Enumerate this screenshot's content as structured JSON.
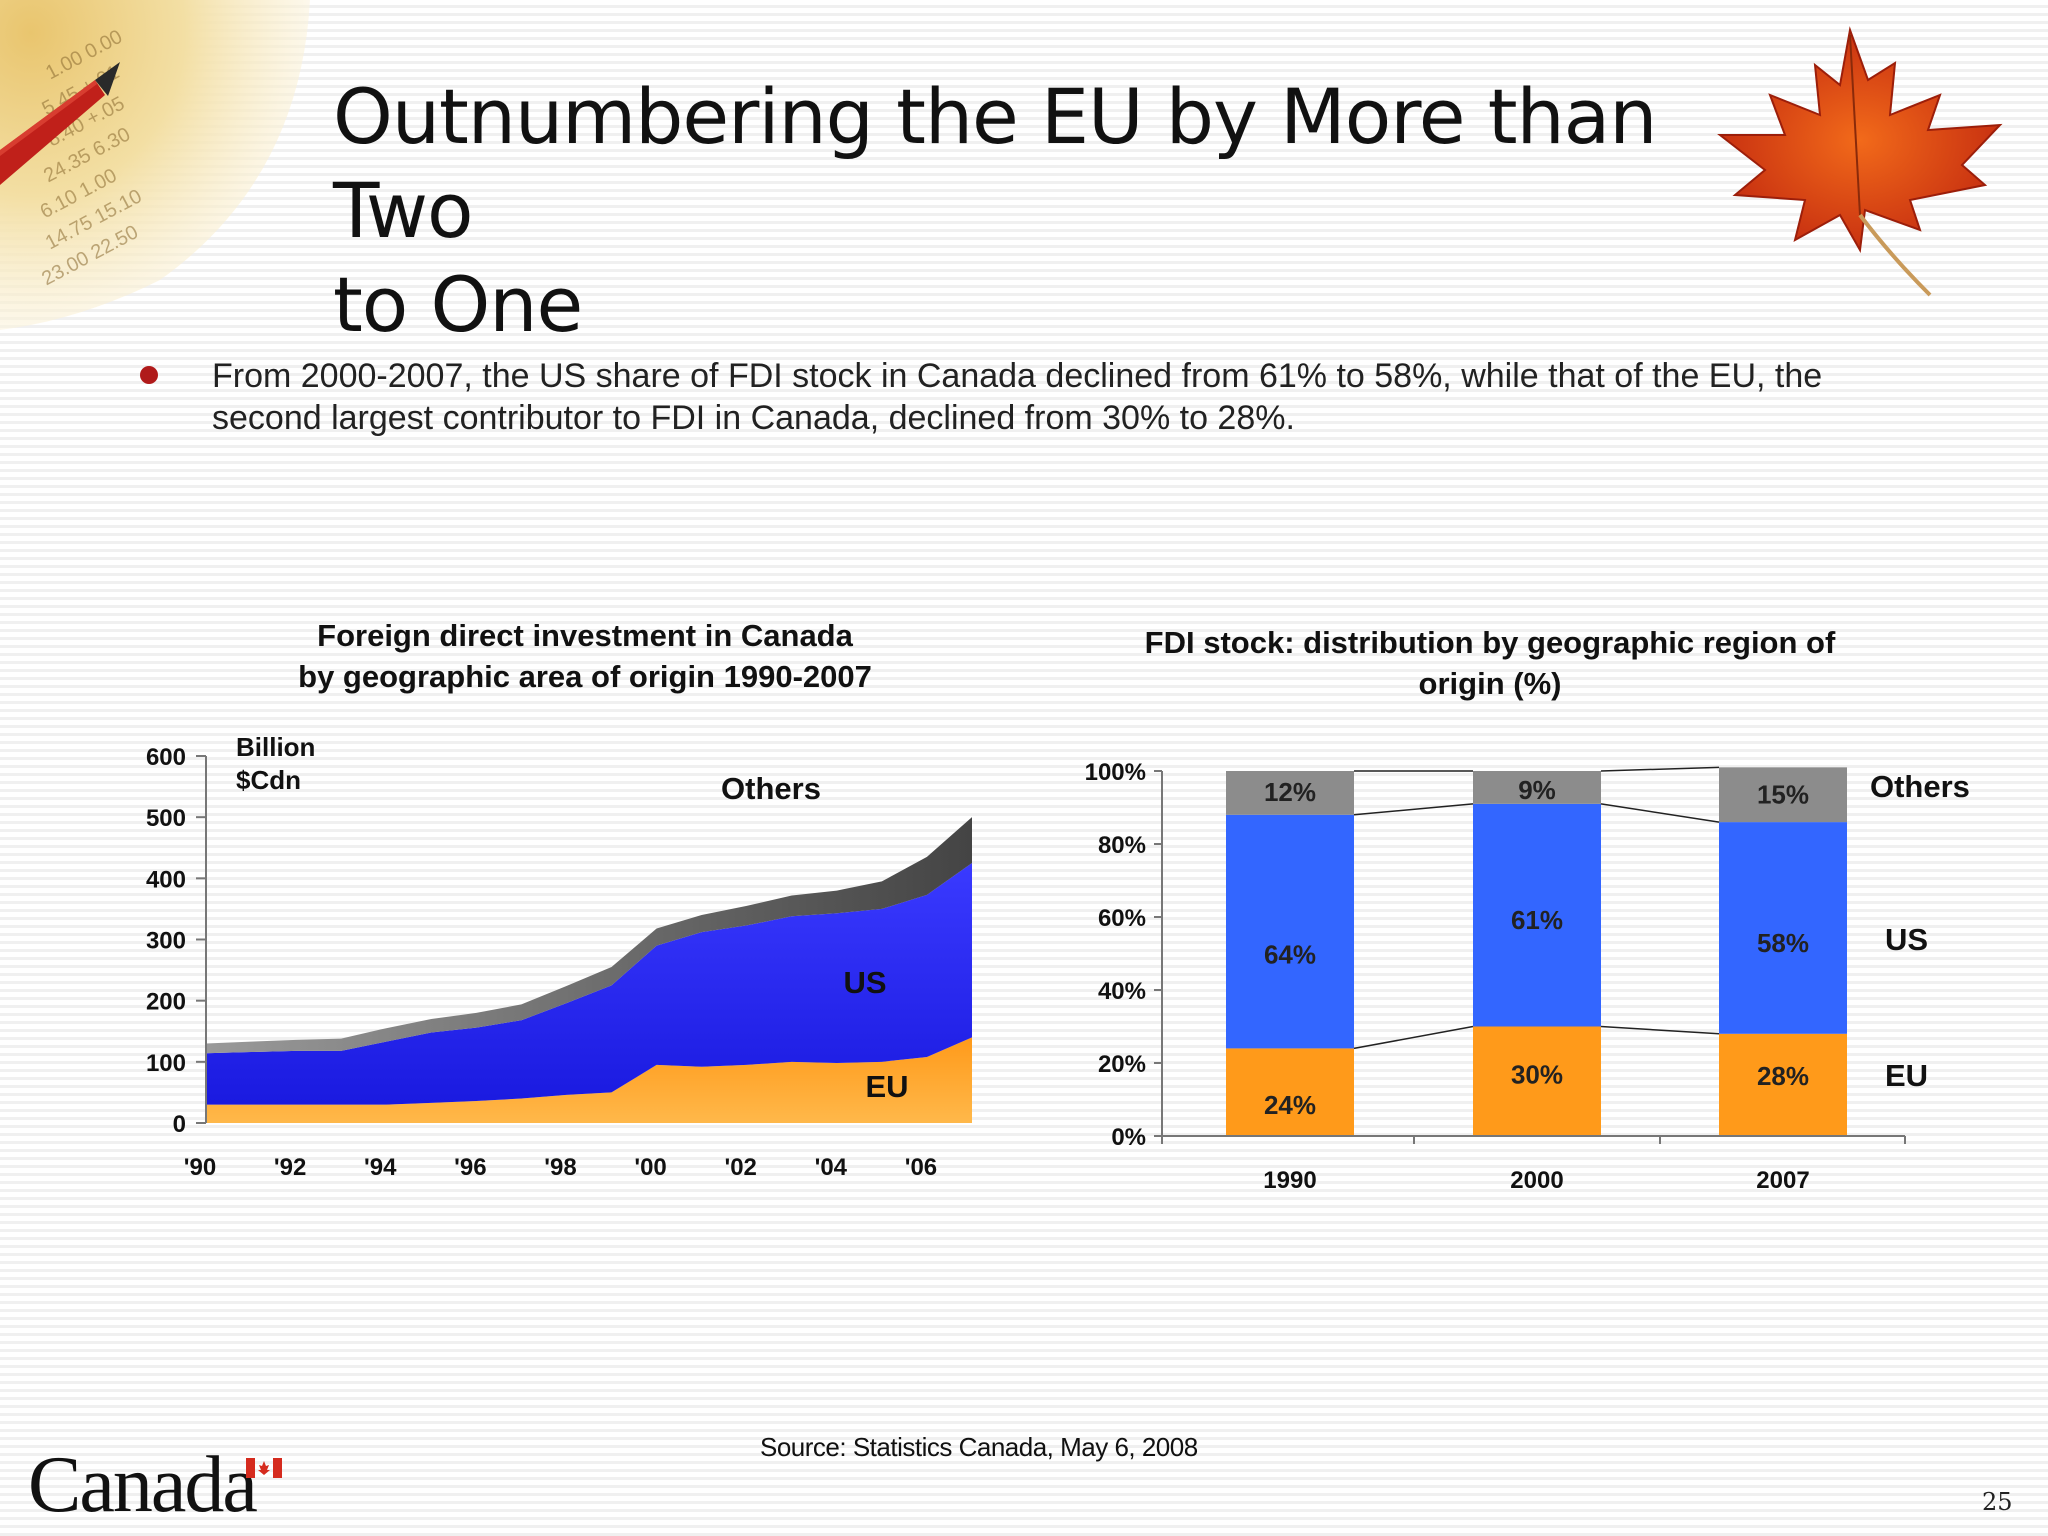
{
  "slide": {
    "title_lines": [
      "Outnumbering the EU by More than Two",
      "to One"
    ],
    "bullet": "From 2000-2007, the US share of FDI stock in Canada declined from 61% to 58%, while that of the EU, the second largest contributor to FDI in Canada, declined from 30% to 28%.",
    "source": "Source: Statistics Canada, May 6, 2008",
    "page_number": "25",
    "wordmark": "Canada",
    "colors": {
      "bullet": "#b01a1a",
      "eu": "#ff9a1a",
      "us": "#2a2aff",
      "others": "#888888",
      "others_dark": "#555555"
    }
  },
  "chart_data": [
    {
      "type": "area",
      "stacked": true,
      "title_lines": [
        "Foreign direct investment in Canada",
        "by geographic area of origin 1990-2007"
      ],
      "unit_label_lines": [
        "Billion",
        "$Cdn"
      ],
      "x": [
        1990,
        1991,
        1992,
        1993,
        1994,
        1995,
        1996,
        1997,
        1998,
        1999,
        2000,
        2001,
        2002,
        2003,
        2004,
        2005,
        2006,
        2007
      ],
      "x_tick_labels": [
        "'90",
        "'92",
        "'94",
        "'96",
        "'98",
        "'00",
        "'02",
        "'04",
        "'06"
      ],
      "x_tick_values": [
        1990,
        1992,
        1994,
        1996,
        1998,
        2000,
        2002,
        2004,
        2006
      ],
      "ylim": [
        0,
        600
      ],
      "y_ticks": [
        0,
        100,
        200,
        300,
        400,
        500,
        600
      ],
      "series": [
        {
          "name": "EU",
          "values": [
            30,
            30,
            30,
            30,
            30,
            33,
            36,
            40,
            46,
            50,
            95,
            92,
            95,
            100,
            98,
            100,
            108,
            140
          ]
        },
        {
          "name": "US",
          "values": [
            84,
            86,
            88,
            88,
            103,
            115,
            120,
            128,
            150,
            175,
            195,
            220,
            228,
            238,
            245,
            250,
            265,
            285
          ]
        },
        {
          "name": "Others",
          "values": [
            16,
            17,
            18,
            20,
            22,
            22,
            24,
            26,
            28,
            30,
            28,
            28,
            32,
            34,
            37,
            45,
            62,
            75
          ]
        }
      ],
      "series_label_positions": "EU low-right, US mid-right, Others top-center"
    },
    {
      "type": "bar",
      "stacked": true,
      "percent": true,
      "title_lines": [
        "FDI stock: distribution by geographic region of",
        "origin (%)"
      ],
      "categories": [
        "1990",
        "2000",
        "2007"
      ],
      "ylim": [
        0,
        100
      ],
      "y_tick_labels": [
        "0%",
        "20%",
        "40%",
        "60%",
        "80%",
        "100%"
      ],
      "series": [
        {
          "name": "EU",
          "values": [
            24,
            30,
            28
          ],
          "labels": [
            "24%",
            "30%",
            "28%"
          ]
        },
        {
          "name": "US",
          "values": [
            64,
            61,
            58
          ],
          "labels": [
            "64%",
            "61%",
            "58%"
          ]
        },
        {
          "name": "Others",
          "values": [
            12,
            9,
            15
          ],
          "labels": [
            "12%",
            "9%",
            "15%"
          ]
        }
      ],
      "legend_placement": "right"
    }
  ]
}
